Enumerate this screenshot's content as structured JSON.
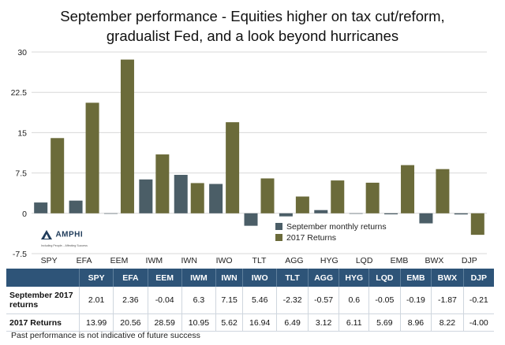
{
  "title_lines": [
    "September performance - Equities higher on tax cut/reform,",
    "gradualist Fed, and a look beyond hurricanes"
  ],
  "chart_data": {
    "type": "bar",
    "categories": [
      "SPY",
      "EFA",
      "EEM",
      "IWM",
      "IWN",
      "IWO",
      "TLT",
      "AGG",
      "HYG",
      "LQD",
      "EMB",
      "BWX",
      "DJP"
    ],
    "series": [
      {
        "name": "September monthly returns",
        "values": [
          2.01,
          2.36,
          -0.04,
          6.3,
          7.15,
          5.46,
          -2.32,
          -0.57,
          0.6,
          -0.05,
          -0.19,
          -1.87,
          -0.21
        ]
      },
      {
        "name": "2017 Returns",
        "values": [
          13.99,
          20.56,
          28.59,
          10.95,
          5.62,
          16.94,
          6.49,
          3.12,
          6.11,
          5.69,
          8.96,
          8.22,
          -4.0
        ]
      }
    ],
    "legend_labels": [
      "September monthly returns",
      "2017 Returns"
    ],
    "ylim": [
      -7.5,
      30
    ],
    "yticks": [
      -7.5,
      0,
      7.5,
      15,
      22.5,
      30
    ],
    "ytick_labels": [
      "-7.5",
      "0",
      "7.5",
      "15",
      "22.5",
      "30"
    ],
    "grid": true,
    "legend_position": "lower-right"
  },
  "colors": {
    "september": "#4b5e67",
    "ytd": "#6b6b3a",
    "grid": "#d8d8d8",
    "table_header": "#2e5478"
  },
  "logo": {
    "icon": "amphi-logo-icon",
    "name": "AMPHI",
    "tagline": "Including People... Affecting Success"
  },
  "table": {
    "columns": [
      "SPY",
      "EFA",
      "EEM",
      "IWM",
      "IWN",
      "IWO",
      "TLT",
      "AGG",
      "HYG",
      "LQD",
      "EMB",
      "BWX",
      "DJP"
    ],
    "rows": [
      {
        "label": "September 2017 returns",
        "values": [
          "2.01",
          "2.36",
          "-0.04",
          "6.3",
          "7.15",
          "5.46",
          "-2.32",
          "-0.57",
          "0.6",
          "-0.05",
          "-0.19",
          "-1.87",
          "-0.21"
        ]
      },
      {
        "label": "2017 Returns",
        "values": [
          "13.99",
          "20.56",
          "28.59",
          "10.95",
          "5.62",
          "16.94",
          "6.49",
          "3.12",
          "6.11",
          "5.69",
          "8.96",
          "8.22",
          "-4.00"
        ]
      }
    ]
  },
  "footnote": "Past performance is not indicative of future success"
}
